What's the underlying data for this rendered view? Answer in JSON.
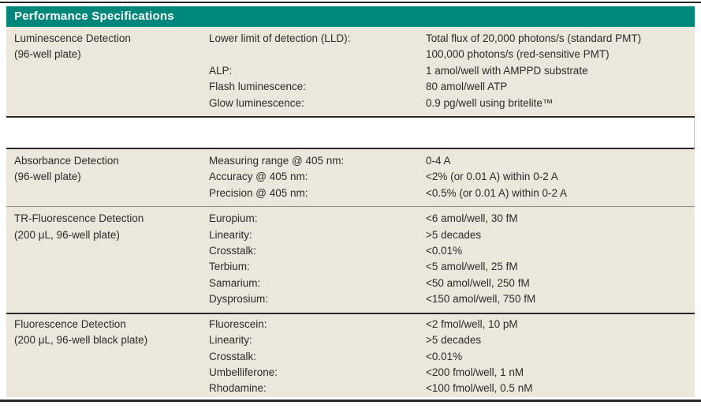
{
  "header": {
    "title": "Performance Specifications"
  },
  "colors": {
    "header_bg": "#00867B",
    "header_text": "#ffffff",
    "section_bg": "#EBE7DB",
    "rule_dark": "#2b2b2b",
    "rule_light": "#919191",
    "body_text": "#2b2b2b"
  },
  "sections": [
    {
      "id": "luminescence",
      "title": "Luminescence Detection",
      "subtitle": "(96-well plate)",
      "rule": "dark",
      "rows": [
        {
          "param": "Lower limit of detection (LLD):",
          "value": "Total flux of 20,000 photons/s (standard PMT)"
        },
        {
          "param": "",
          "value": "100,000 photons/s (red-sensitive PMT)"
        },
        {
          "param": "ALP:",
          "value": "1 amol/well with AMPPD substrate"
        },
        {
          "param": "Flash luminescence:",
          "value": "80 amol/well ATP"
        },
        {
          "param": "Glow luminescence:",
          "value": "0.9 pg/well using britelite™"
        }
      ]
    },
    {
      "id": "spacer",
      "gap": true
    },
    {
      "id": "absorbance",
      "title": "Absorbance Detection",
      "subtitle": "(96-well plate)",
      "rule": "light",
      "rows": [
        {
          "param": "Measuring range @ 405 nm:",
          "value": "0-4 A"
        },
        {
          "param": "Accuracy @ 405 nm:",
          "value": "<2% (or 0.01 A) within 0-2 A"
        },
        {
          "param": "Precision @ 405 nm:",
          "value": "<0.5% (or 0.01 A) within 0-2 A"
        }
      ]
    },
    {
      "id": "tr-fluorescence",
      "title": "TR-Fluorescence Detection",
      "subtitle": "(200 μL, 96-well plate)",
      "rule": "dark",
      "rows": [
        {
          "param": "Europium:",
          "value": "<6 amol/well, 30 fM"
        },
        {
          "param": "Linearity:",
          "value": ">5 decades"
        },
        {
          "param": "Crosstalk:",
          "value": "<0.01%"
        },
        {
          "param": "Terbium:",
          "value": "<5 amol/well, 25 fM"
        },
        {
          "param": "Samarium:",
          "value": "<50 amol/well, 250 fM"
        },
        {
          "param": "Dysprosium:",
          "value": "<150 amol/well, 750 fM"
        }
      ]
    },
    {
      "id": "fluorescence",
      "title": "Fluorescence Detection",
      "subtitle": "(200 μL, 96-well black plate)",
      "rule": "none",
      "last": true,
      "rows": [
        {
          "param": "Fluorescein:",
          "value": "<2 fmol/well, 10 pM"
        },
        {
          "param": "Linearity:",
          "value": ">5 decades"
        },
        {
          "param": "Crosstalk:",
          "value": "<0.01%"
        },
        {
          "param": "Umbelliferone:",
          "value": "<200 fmol/well, 1 nM"
        },
        {
          "param": "Rhodamine:",
          "value": "<100 fmol/well, 0.5 nM"
        }
      ]
    }
  ]
}
